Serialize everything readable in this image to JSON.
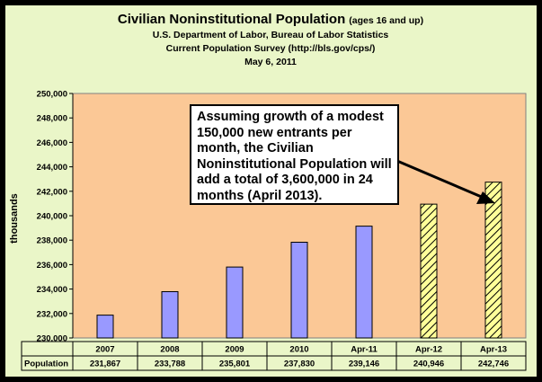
{
  "chart_data": {
    "type": "bar",
    "title": "Civilian Noninstitutional Population",
    "title_suffix": "(ages 16 and up)",
    "subtitle_lines": [
      "U.S. Department of Labor, Bureau of Labor Statistics",
      "Current Population Survey (http://bls.gov/cps/)",
      "May 6, 2011"
    ],
    "ylabel": "thousands",
    "ylim": [
      230000,
      250000
    ],
    "yticks": [
      230000,
      232000,
      234000,
      236000,
      238000,
      240000,
      242000,
      244000,
      246000,
      248000,
      250000
    ],
    "ytick_labels": [
      "230,000",
      "232,000",
      "234,000",
      "236,000",
      "238,000",
      "240,000",
      "242,000",
      "244,000",
      "246,000",
      "248,000",
      "250,000"
    ],
    "categories": [
      "2007",
      "2008",
      "2009",
      "2010",
      "Apr-11",
      "Apr-12",
      "Apr-13"
    ],
    "values": [
      231867,
      233788,
      235801,
      237830,
      239146,
      240946,
      242746
    ],
    "value_labels": [
      "231,867",
      "233,788",
      "235,801",
      "237,830",
      "239,146",
      "240,946",
      "242,746"
    ],
    "projected": [
      false,
      false,
      false,
      false,
      false,
      true,
      true
    ],
    "table_row_label": "Population",
    "grid": false,
    "colors": {
      "actual_bar": "#9999ff",
      "projected_bar": "#ffff99",
      "projected_hatch": "#000000",
      "plot_background": "#fbc896",
      "outer_background": "#eaf6c8"
    },
    "annotation": "Assuming growth of a modest 150,000 new entrants per month, the Civilian Noninstitutional Population will add a total of 3,600,000 in 24 months (April 2013)."
  }
}
